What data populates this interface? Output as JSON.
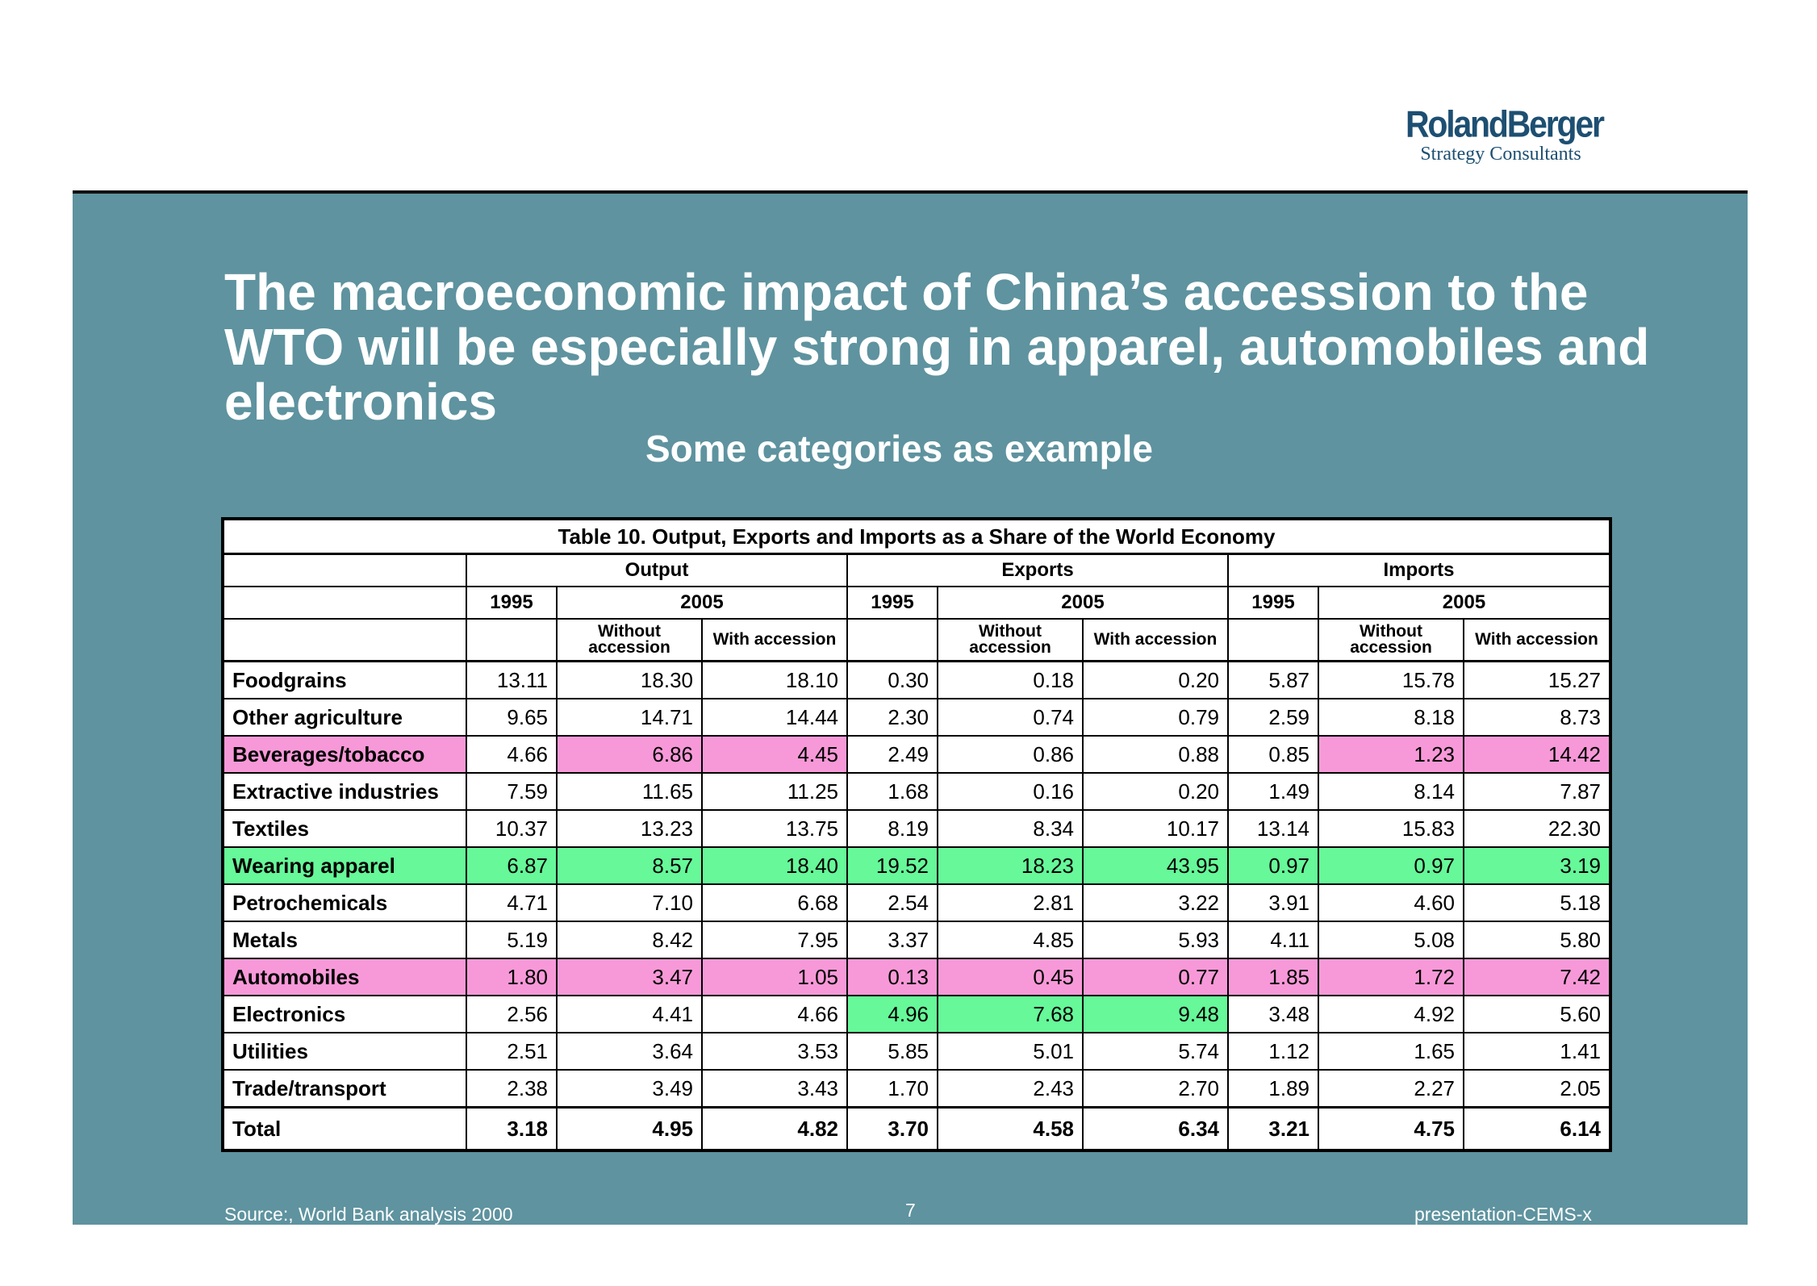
{
  "logo": {
    "brand": "RolandBerger",
    "tagline": "Strategy Consultants"
  },
  "title": "The macroeconomic impact of China’s accession to the WTO will be especially strong in apparel, automobiles and electronics",
  "subtitle": "Some categories as example",
  "table": {
    "caption": "Table 10. Output, Exports and Imports as a Share of the World Economy",
    "groups": [
      "Output",
      "Exports",
      "Imports"
    ],
    "year_base": "1995",
    "year_target": "2005",
    "scenario_without": "Without accession",
    "scenario_with": "With accession",
    "rows": [
      {
        "label": "Foodgrains",
        "values": [
          "13.11",
          "18.30",
          "18.10",
          "0.30",
          "0.18",
          "0.20",
          "5.87",
          "15.78",
          "15.27"
        ],
        "highlight": [
          "",
          "",
          "",
          "",
          "",
          "",
          "",
          "",
          ""
        ]
      },
      {
        "label": "Other agriculture",
        "values": [
          "9.65",
          "14.71",
          "14.44",
          "2.30",
          "0.74",
          "0.79",
          "2.59",
          "8.18",
          "8.73"
        ],
        "highlight": [
          "",
          "",
          "",
          "",
          "",
          "",
          "",
          "",
          ""
        ]
      },
      {
        "label": "Beverages/tobacco",
        "label_highlight": "pink",
        "values": [
          "4.66",
          "6.86",
          "4.45",
          "2.49",
          "0.86",
          "0.88",
          "0.85",
          "1.23",
          "14.42"
        ],
        "highlight": [
          "",
          "pink",
          "pink",
          "",
          "",
          "",
          "",
          "pink",
          "pink"
        ]
      },
      {
        "label": "Extractive industries",
        "values": [
          "7.59",
          "11.65",
          "11.25",
          "1.68",
          "0.16",
          "0.20",
          "1.49",
          "8.14",
          "7.87"
        ],
        "highlight": [
          "",
          "",
          "",
          "",
          "",
          "",
          "",
          "",
          ""
        ]
      },
      {
        "label": "Textiles",
        "values": [
          "10.37",
          "13.23",
          "13.75",
          "8.19",
          "8.34",
          "10.17",
          "13.14",
          "15.83",
          "22.30"
        ],
        "highlight": [
          "",
          "",
          "",
          "",
          "",
          "",
          "",
          "",
          ""
        ]
      },
      {
        "label": "Wearing apparel",
        "label_highlight": "green",
        "values": [
          "6.87",
          "8.57",
          "18.40",
          "19.52",
          "18.23",
          "43.95",
          "0.97",
          "0.97",
          "3.19"
        ],
        "highlight": [
          "green",
          "green",
          "green",
          "green",
          "green",
          "green",
          "green",
          "green",
          "green"
        ]
      },
      {
        "label": "Petrochemicals",
        "values": [
          "4.71",
          "7.10",
          "6.68",
          "2.54",
          "2.81",
          "3.22",
          "3.91",
          "4.60",
          "5.18"
        ],
        "highlight": [
          "",
          "",
          "",
          "",
          "",
          "",
          "",
          "",
          ""
        ]
      },
      {
        "label": "Metals",
        "values": [
          "5.19",
          "8.42",
          "7.95",
          "3.37",
          "4.85",
          "5.93",
          "4.11",
          "5.08",
          "5.80"
        ],
        "highlight": [
          "",
          "",
          "",
          "",
          "",
          "",
          "",
          "",
          ""
        ]
      },
      {
        "label": "Automobiles",
        "label_highlight": "pink",
        "values": [
          "1.80",
          "3.47",
          "1.05",
          "0.13",
          "0.45",
          "0.77",
          "1.85",
          "1.72",
          "7.42"
        ],
        "highlight": [
          "pink",
          "pink",
          "pink",
          "pink",
          "pink",
          "pink",
          "pink",
          "pink",
          "pink"
        ]
      },
      {
        "label": "Electronics",
        "values": [
          "2.56",
          "4.41",
          "4.66",
          "4.96",
          "7.68",
          "9.48",
          "3.48",
          "4.92",
          "5.60"
        ],
        "highlight": [
          "",
          "",
          "",
          "green",
          "green",
          "green",
          "",
          "",
          ""
        ]
      },
      {
        "label": "Utilities",
        "values": [
          "2.51",
          "3.64",
          "3.53",
          "5.85",
          "5.01",
          "5.74",
          "1.12",
          "1.65",
          "1.41"
        ],
        "highlight": [
          "",
          "",
          "",
          "",
          "",
          "",
          "",
          "",
          ""
        ]
      },
      {
        "label": "Trade/transport",
        "values": [
          "2.38",
          "3.49",
          "3.43",
          "1.70",
          "2.43",
          "2.70",
          "1.89",
          "2.27",
          "2.05"
        ],
        "highlight": [
          "",
          "",
          "",
          "",
          "",
          "",
          "",
          "",
          ""
        ]
      }
    ],
    "total": {
      "label": "Total",
      "values": [
        "3.18",
        "4.95",
        "4.82",
        "3.70",
        "4.58",
        "6.34",
        "3.21",
        "4.75",
        "6.14"
      ]
    }
  },
  "footer": {
    "source": "Source:, World Bank analysis 2000",
    "page": "7",
    "doc_id": "presentation-CEMS-x"
  },
  "colors": {
    "panel": "#5e939f",
    "pink": "#f799d8",
    "green": "#66f899",
    "logo": "#1d4f72"
  }
}
